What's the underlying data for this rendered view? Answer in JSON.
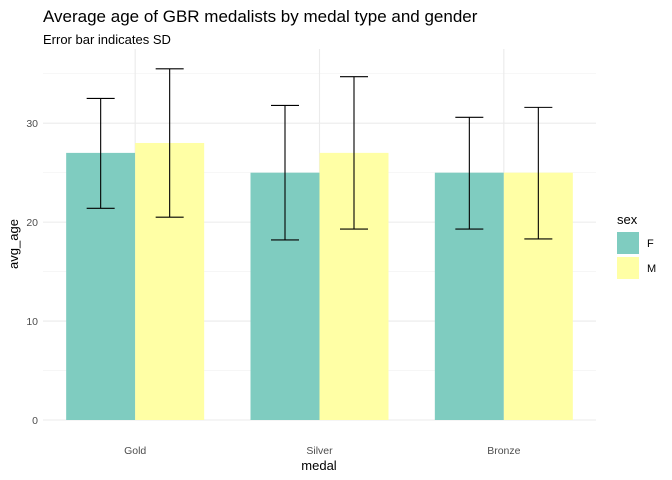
{
  "chart_data": {
    "type": "bar",
    "title": "Average age of GBR medalists by medal type and gender",
    "subtitle": "Error bar indicates SD",
    "xlabel": "medal",
    "ylabel": "avg_age",
    "categories": [
      "Gold",
      "Silver",
      "Bronze"
    ],
    "ylim": [
      0,
      37.5
    ],
    "yticks": [
      0,
      10,
      20,
      30
    ],
    "grid": true,
    "legend": {
      "title": "sex",
      "placement": "right"
    },
    "series": [
      {
        "name": "F",
        "color": "#7fccc0",
        "values": [
          27.0,
          25.0,
          25.0
        ],
        "error_low": [
          21.4,
          18.2,
          19.3
        ],
        "error_high": [
          32.5,
          31.8,
          30.6
        ]
      },
      {
        "name": "M",
        "color": "#ffffa5",
        "values": [
          28.0,
          27.0,
          25.0
        ],
        "error_low": [
          20.5,
          19.3,
          18.3
        ],
        "error_high": [
          35.5,
          34.7,
          31.6
        ]
      }
    ]
  }
}
